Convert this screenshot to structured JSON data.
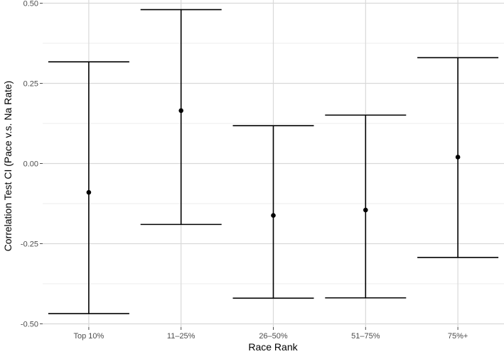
{
  "chart_data": {
    "type": "errorbar",
    "xlabel": "Race Rank",
    "ylabel": "Correlation Test CI (Pace v.s. Na Rate)",
    "categories": [
      "Top 10%",
      "11–25%",
      "26–50%",
      "51–75%",
      "75%+"
    ],
    "estimates": [
      -0.09,
      0.165,
      -0.162,
      -0.145,
      0.02
    ],
    "lower": [
      -0.468,
      -0.19,
      -0.42,
      -0.419,
      -0.293
    ],
    "upper": [
      0.317,
      0.48,
      0.118,
      0.151,
      0.33
    ],
    "yticks": [
      0.5,
      0.25,
      0.0,
      -0.25,
      -0.5
    ],
    "ytick_labels": [
      "0.50",
      "0.25",
      "0.00",
      "-0.25",
      "-0.50"
    ],
    "ylim": [
      -0.51,
      0.51
    ],
    "grid": true,
    "colors": {
      "background": "#ffffff",
      "grid": "#d9d9d9",
      "grid_minor": "#ececec",
      "marks": "#000000"
    }
  }
}
